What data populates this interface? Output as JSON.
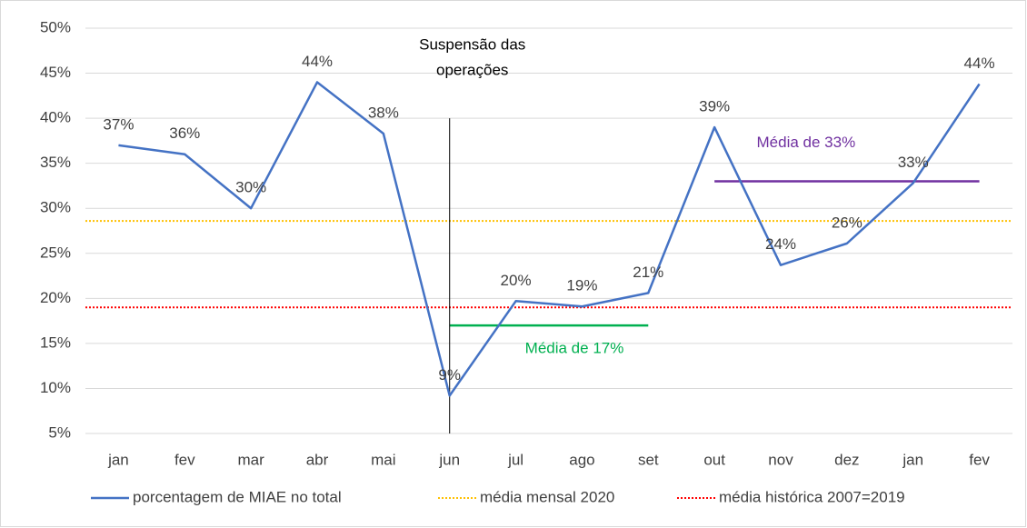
{
  "chart_data": {
    "type": "line",
    "categories": [
      "jan",
      "fev",
      "mar",
      "abr",
      "mai",
      "jun",
      "jul",
      "ago",
      "set",
      "out",
      "nov",
      "dez",
      "jan",
      "fev"
    ],
    "series": [
      {
        "name": "porcentagem de MIAE no total",
        "color": "#4472c4",
        "values": [
          37,
          36,
          30,
          44,
          38.3,
          9.2,
          19.7,
          19.1,
          20.6,
          39,
          23.7,
          26.1,
          32.8,
          43.8
        ],
        "value_labels": [
          "37%",
          "36%",
          "30%",
          "44%",
          "38%",
          "9%",
          "20%",
          "19%",
          "21%",
          "39%",
          "24%",
          "26%",
          "33%",
          "44%"
        ]
      }
    ],
    "reference_lines": [
      {
        "name": "média mensal 2020",
        "value": 28.6,
        "color": "#ffc000"
      },
      {
        "name": "média histórica 2007=2019",
        "value": 19,
        "color": "#ff0000"
      }
    ],
    "segments": [
      {
        "label": "Média de 17%",
        "value": 17,
        "from": "jun",
        "to": "set",
        "color": "#00b050"
      },
      {
        "label": "Média de 33%",
        "value": 33,
        "from": "out",
        "to": "fev",
        "color": "#7030a0"
      }
    ],
    "annotation": {
      "lines": [
        "Suspensão das",
        "operações"
      ],
      "at": "jun",
      "ylim": [
        5,
        40
      ]
    },
    "ylim": [
      5,
      50
    ],
    "yticks": [
      {
        "value": 5,
        "label": "5%"
      },
      {
        "value": 10,
        "label": "10%"
      },
      {
        "value": 15,
        "label": "15%"
      },
      {
        "value": 20,
        "label": "20%"
      },
      {
        "value": 25,
        "label": "25%"
      },
      {
        "value": 30,
        "label": "30%"
      },
      {
        "value": 35,
        "label": "35%"
      },
      {
        "value": 40,
        "label": "40%"
      },
      {
        "value": 45,
        "label": "45%"
      },
      {
        "value": 50,
        "label": "50%"
      }
    ],
    "grid": true,
    "legend": "bottom"
  }
}
